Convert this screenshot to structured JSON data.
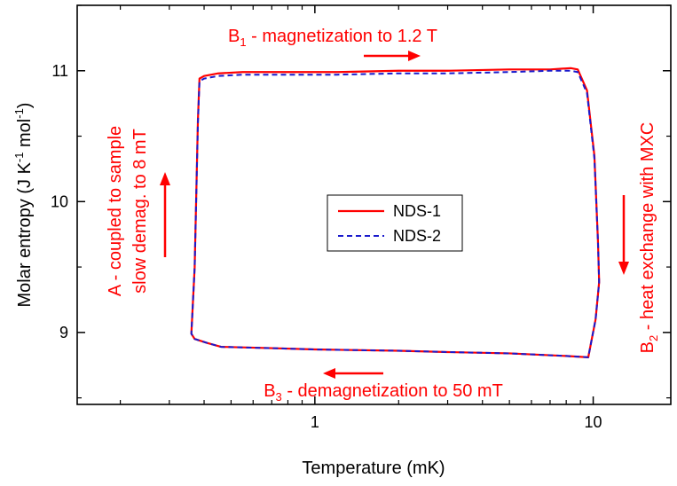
{
  "chart_data": {
    "type": "line",
    "xlabel": "Temperature (mK)",
    "ylabel": {
      "main": "Molar entropy (J K",
      "sup1": "-1",
      "mid": " mol",
      "sup2": "-1",
      "end": ")"
    },
    "x_scale": "log",
    "xlim": [
      0.14,
      19
    ],
    "ylim": [
      8.45,
      11.5
    ],
    "x_ticks": [
      {
        "value": 1,
        "label": "1"
      },
      {
        "value": 10,
        "label": "10"
      }
    ],
    "y_ticks": [
      {
        "value": 9,
        "label": "9"
      },
      {
        "value": 10,
        "label": "10"
      },
      {
        "value": 11,
        "label": "11"
      }
    ],
    "legend": {
      "placement": "center",
      "entries": [
        "NDS-1",
        "NDS-2"
      ]
    },
    "series": [
      {
        "name": "NDS-1",
        "color": "#ff0000",
        "dash": "solid",
        "x": [
          0.38,
          0.385,
          0.4,
          0.45,
          0.55,
          0.8,
          1.2,
          2,
          3,
          5,
          7,
          8.3,
          8.8,
          9.5,
          10.1,
          10.4,
          10.5,
          10.5,
          10.2,
          9.6,
          8,
          5,
          3,
          2,
          1,
          0.7,
          0.46,
          0.41,
          0.37,
          0.36,
          0.37,
          0.38
        ],
        "y": [
          10.62,
          10.94,
          10.96,
          10.98,
          10.99,
          10.99,
          10.99,
          11.0,
          11.0,
          11.01,
          11.01,
          11.02,
          11.01,
          10.85,
          10.35,
          9.7,
          9.4,
          9.38,
          9.1,
          8.81,
          8.82,
          8.84,
          8.85,
          8.86,
          8.87,
          8.88,
          8.89,
          8.92,
          8.95,
          8.99,
          9.5,
          10.62
        ]
      },
      {
        "name": "NDS-2",
        "color": "#1a1acc",
        "dash": "dashed",
        "x": [
          0.38,
          0.385,
          0.4,
          0.45,
          0.55,
          0.8,
          1.2,
          2,
          3,
          5,
          7,
          8.3,
          8.8,
          9.5,
          10.1,
          10.4,
          10.5,
          10.5,
          10.2,
          9.6,
          8,
          5,
          3,
          2,
          1,
          0.7,
          0.46,
          0.41,
          0.37,
          0.36,
          0.37,
          0.38
        ],
        "y": [
          10.6,
          10.92,
          10.94,
          10.96,
          10.97,
          10.97,
          10.97,
          10.98,
          10.98,
          10.99,
          11.0,
          11.0,
          10.99,
          10.83,
          10.33,
          9.7,
          9.4,
          9.38,
          9.1,
          8.81,
          8.82,
          8.84,
          8.85,
          8.86,
          8.87,
          8.88,
          8.89,
          8.92,
          8.95,
          8.99,
          9.5,
          10.6
        ]
      }
    ],
    "annotations": {
      "top": {
        "b": "B",
        "sub": "1",
        "text": " - magnetization to 1.2 T"
      },
      "bottom": {
        "b": "B",
        "sub": "3",
        "text": " - demagnetization to 50 mT"
      },
      "right": {
        "b": "B",
        "sub": "2",
        "text": " - heat exchange with MXC"
      },
      "left_line1": "A - coupled to sample",
      "left_line2": "slow demag. to 8 mT"
    },
    "annotation_color": "#ff0000"
  }
}
